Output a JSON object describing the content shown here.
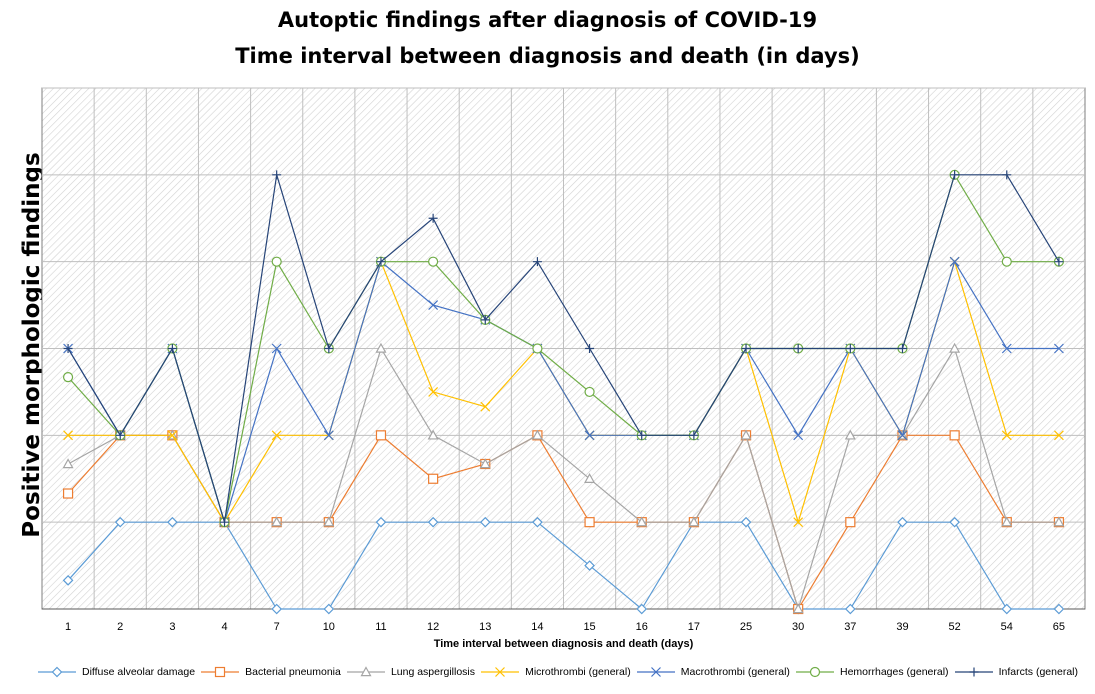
{
  "chart_data": {
    "type": "line",
    "title": "Autoptic findings after diagnosis of COVID-19",
    "subtitle": "Time interval between diagnosis and death (in days)",
    "xlabel": "Time interval between diagnosis and  death (days)",
    "ylabel": "Positive morphologic findings",
    "ylim": [
      0,
      6
    ],
    "grid": true,
    "legend_position": "bottom",
    "categories": [
      "1",
      "2",
      "3",
      "4",
      "7",
      "10",
      "11",
      "12",
      "13",
      "14",
      "15",
      "16",
      "17",
      "25",
      "30",
      "37",
      "39",
      "52",
      "54",
      "65"
    ],
    "series": [
      {
        "name": "Diffuse alveolar damage",
        "color": "#5b9bd5",
        "marker": "diamond",
        "values": [
          0.33,
          1,
          1,
          1,
          0,
          0,
          1,
          1,
          1,
          1,
          0.5,
          0,
          1,
          1,
          0,
          0,
          1,
          1,
          0,
          0
        ]
      },
      {
        "name": "Bacterial pneumonia",
        "color": "#ed7d31",
        "marker": "square",
        "values": [
          1.33,
          2,
          2,
          1,
          1,
          1,
          2,
          1.5,
          1.67,
          2,
          1,
          1,
          1,
          2,
          0,
          1,
          2,
          2,
          1,
          1
        ]
      },
      {
        "name": "Lung aspergillosis",
        "color": "#a5a5a5",
        "marker": "triangle",
        "values": [
          1.67,
          2,
          2,
          1,
          1,
          1,
          3,
          2,
          1.67,
          2,
          1.5,
          1,
          1,
          2,
          0,
          2,
          2,
          3,
          1,
          1
        ]
      },
      {
        "name": "Microthrombi (general)",
        "color": "#ffc000",
        "marker": "x",
        "values": [
          2,
          2,
          2,
          1,
          2,
          2,
          4,
          2.5,
          2.33,
          3,
          2,
          2,
          2,
          3,
          1,
          3,
          2,
          4,
          2,
          2
        ]
      },
      {
        "name": "Macrothrombi (general)",
        "color": "#4472c4",
        "marker": "x",
        "values": [
          3,
          2,
          3,
          1,
          3,
          2,
          4,
          3.5,
          3.33,
          3,
          2,
          2,
          2,
          3,
          2,
          3,
          2,
          4,
          3,
          3
        ]
      },
      {
        "name": "Hemorrhages (general)",
        "color": "#70ad47",
        "marker": "circle",
        "values": [
          2.67,
          2,
          3,
          1,
          4,
          3,
          4,
          4,
          3.33,
          3,
          2.5,
          2,
          2,
          3,
          3,
          3,
          3,
          5,
          4,
          4
        ]
      },
      {
        "name": "Infarcts (general)",
        "color": "#264478",
        "marker": "plus",
        "values": [
          3,
          2,
          3,
          1,
          5,
          3,
          4,
          4.5,
          3.33,
          4,
          3,
          2,
          2,
          3,
          3,
          3,
          3,
          5,
          5,
          4
        ]
      }
    ]
  }
}
